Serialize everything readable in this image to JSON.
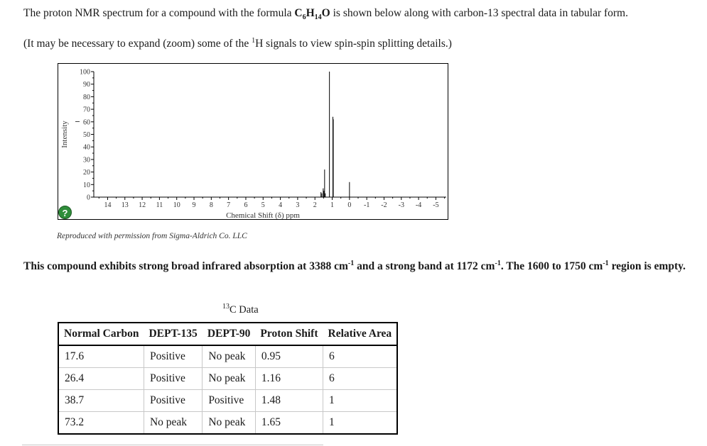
{
  "intro": {
    "part1": "The proton NMR spectrum for a compound with the formula ",
    "formula": {
      "c": "C",
      "c_sub": "6",
      "h": "H",
      "h_sub": "14",
      "o": "O"
    },
    "part2": " is shown below along with carbon-13 spectral data in tabular form."
  },
  "zoom_note": {
    "part1": "(It may be necessary to expand (zoom) some of the ",
    "sup": "1",
    "part2": "H signals to view spin-spin splitting details.)"
  },
  "spectrum": {
    "help_icon": "?",
    "credit": "Reproduced with permission from Sigma-Aldrich Co. LLC"
  },
  "chart_data": {
    "type": "line",
    "xlabel": "Chemical Shift (δ) ppm",
    "ylabel": "Intensity",
    "xlim": [
      14.8,
      -5.6
    ],
    "ylim": [
      0,
      100
    ],
    "x_ticks": [
      "14",
      "13",
      "12",
      "11",
      "10",
      "9",
      "8",
      "7",
      "6",
      "5",
      "4",
      "3",
      "2",
      "1",
      "0",
      "-1",
      "-2",
      "-3",
      "-4",
      "-5"
    ],
    "y_ticks": [
      "0",
      "10",
      "20",
      "30",
      "40",
      "50",
      "60",
      "70",
      "80",
      "90",
      "100"
    ],
    "peaks": [
      {
        "shift": 1.65,
        "intensity": 4
      },
      {
        "shift": 1.6,
        "intensity": 3
      },
      {
        "shift": 1.52,
        "intensity": 7
      },
      {
        "shift": 1.48,
        "intensity": 5
      },
      {
        "shift": 1.44,
        "intensity": 22
      },
      {
        "shift": 1.4,
        "intensity": 3
      },
      {
        "shift": 1.16,
        "intensity": 100
      },
      {
        "shift": 0.96,
        "intensity": 64
      },
      {
        "shift": 0.94,
        "intensity": 62
      },
      {
        "shift": 0.0,
        "intensity": 12
      }
    ]
  },
  "ir_text": {
    "a": "This compound exhibits strong broad infrared absorption at 3388 cm",
    "a_sup": "-1",
    "b": " and a strong band at 1172 cm",
    "b_sup": "-1",
    "c": ". The 1600 to 1750 cm",
    "c_sup": "-1",
    "d": " region is empty."
  },
  "c13": {
    "title_sup": "13",
    "title": "C Data",
    "headers": [
      "Normal Carbon",
      "DEPT-135",
      "DEPT-90",
      "Proton Shift",
      "Relative Area"
    ],
    "rows": [
      [
        "17.6",
        "Positive",
        "No peak",
        "0.95",
        "6"
      ],
      [
        "26.4",
        "Positive",
        "No peak",
        "1.16",
        "6"
      ],
      [
        "38.7",
        "Positive",
        "Positive",
        "1.48",
        "1"
      ],
      [
        "73.2",
        "No peak",
        "No peak",
        "1.65",
        "1"
      ]
    ]
  }
}
